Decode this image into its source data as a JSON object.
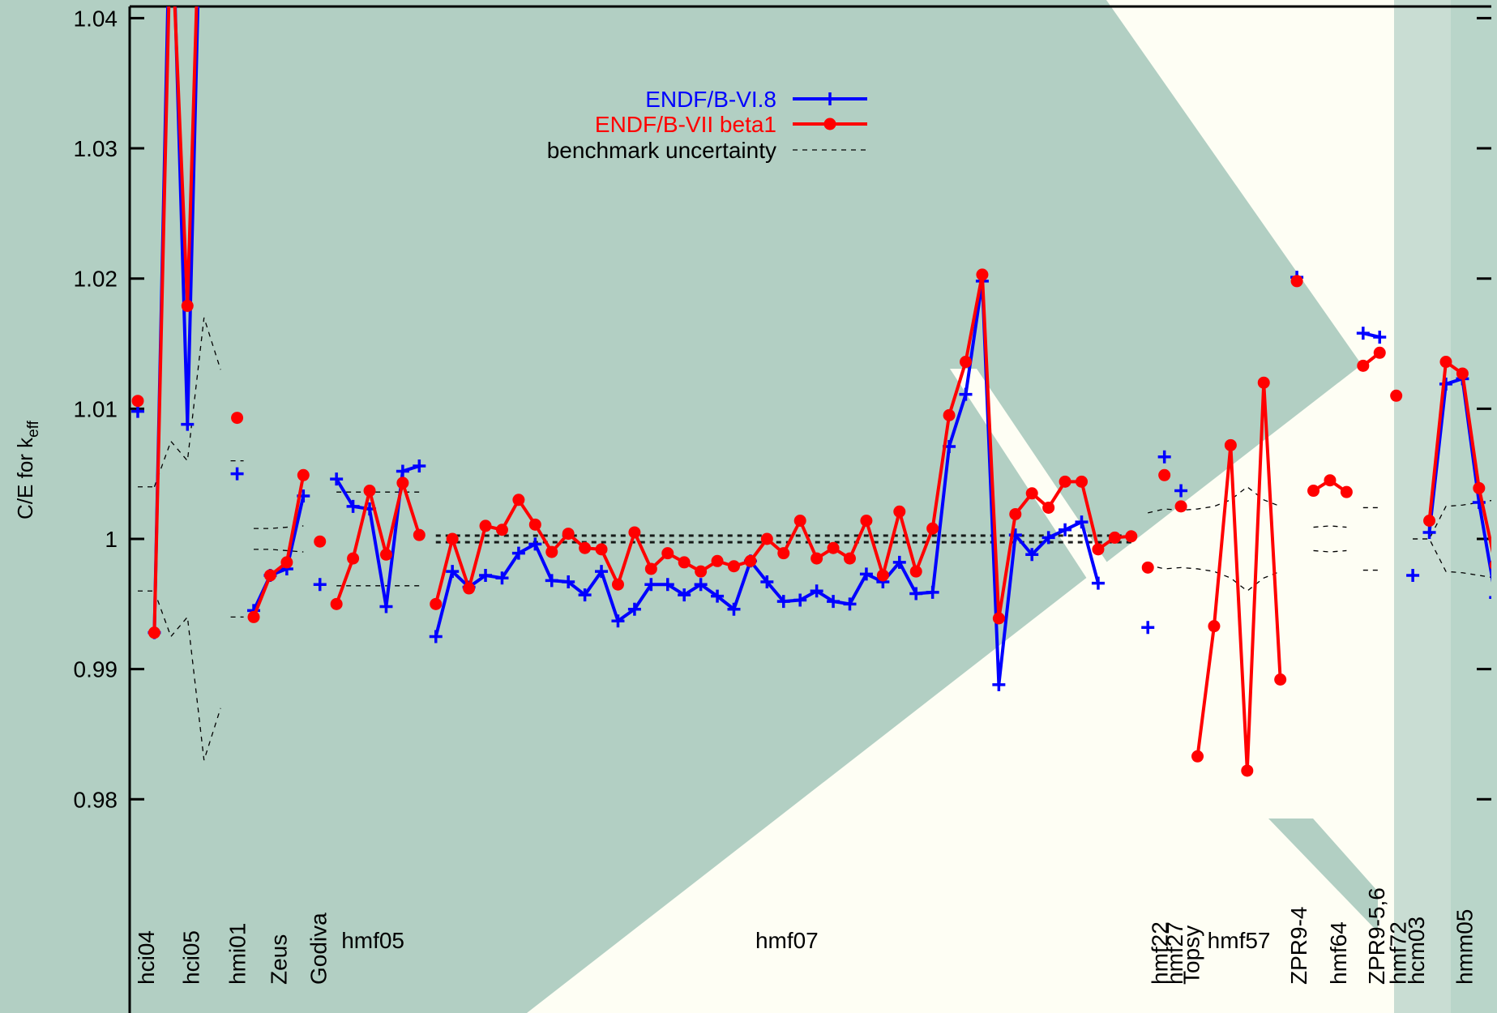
{
  "chart_data": {
    "type": "line",
    "ylabel_main": "C/E for k",
    "ylabel_sub": "eff",
    "ylim": [
      0.98,
      1.04
    ],
    "yticks": [
      "0.98",
      "0.99",
      "1",
      "1.01",
      "1.02",
      "1.03",
      "1.04"
    ],
    "ytick_values": [
      0.98,
      0.99,
      1.0,
      1.01,
      1.02,
      1.03,
      1.04
    ],
    "xlim": [
      0,
      84
    ],
    "grid": false,
    "legend_position": "top-center",
    "legend": [
      {
        "label": "ENDF/B-VI.8",
        "color": "#0000ff",
        "marker": "plus"
      },
      {
        "label": "ENDF/B-VII beta1",
        "color": "#ff0000",
        "marker": "circle"
      },
      {
        "label": "benchmark uncertainty",
        "color": "#000000",
        "marker": "dashed"
      }
    ],
    "group_labels": [
      {
        "text": "hci04",
        "x": 0.5,
        "rotated": true
      },
      {
        "text": "hci05",
        "x": 3.2,
        "rotated": true
      },
      {
        "text": "hmi01",
        "x": 6,
        "rotated": true
      },
      {
        "text": "Zeus",
        "x": 8.5,
        "rotated": true
      },
      {
        "text": "Godiva",
        "x": 10.9,
        "rotated": true
      },
      {
        "text": "hmf05",
        "x": 14.2,
        "rotated": false
      },
      {
        "text": "hmf07",
        "x": 39.2,
        "rotated": false
      },
      {
        "text": "hmf22",
        "x": 61.7,
        "rotated": true
      },
      {
        "text": "hmf27",
        "x": 62.6,
        "rotated": true
      },
      {
        "text": "Topsy",
        "x": 63.6,
        "rotated": true
      },
      {
        "text": "hmf57",
        "x": 66.5,
        "rotated": false
      },
      {
        "text": "ZPR9-4",
        "x": 70.1,
        "rotated": true
      },
      {
        "text": "hmf64",
        "x": 72.5,
        "rotated": true
      },
      {
        "text": "ZPR9-5,6",
        "x": 74.8,
        "rotated": true
      },
      {
        "text": "hmf72",
        "x": 76.1,
        "rotated": true
      },
      {
        "text": "hcm03",
        "x": 77.2,
        "rotated": true
      },
      {
        "text": "hmm05",
        "x": 80.1,
        "rotated": true
      }
    ],
    "series": [
      {
        "name": "ENDF/B-VI.8",
        "color": "#0000ff",
        "marker": "plus",
        "segments": [
          [
            [
              0,
              1.0098
            ]
          ],
          [
            [
              1,
              0.9928
            ],
            [
              2,
              1.052
            ],
            [
              3,
              1.0088
            ],
            [
              4,
              1.06
            ]
          ],
          [
            [
              6,
              1.005
            ]
          ],
          [
            [
              7,
              0.9945
            ],
            [
              8,
              0.9972
            ],
            [
              9,
              0.9977
            ],
            [
              10,
              1.0033
            ]
          ],
          [
            [
              11,
              0.9965
            ]
          ],
          [
            [
              12,
              1.0046
            ],
            [
              13,
              1.0025
            ],
            [
              14,
              1.0023
            ],
            [
              15,
              0.9948
            ],
            [
              16,
              1.0052
            ],
            [
              17,
              1.0056
            ]
          ],
          [
            [
              18,
              0.9925
            ],
            [
              19,
              0.9975
            ],
            [
              20,
              0.9963
            ],
            [
              21,
              0.9972
            ],
            [
              22,
              0.997
            ],
            [
              23,
              0.9989
            ],
            [
              24,
              0.9996
            ],
            [
              25,
              0.9968
            ],
            [
              26,
              0.9967
            ],
            [
              27,
              0.9957
            ],
            [
              28,
              0.9975
            ],
            [
              29,
              0.9937
            ],
            [
              30,
              0.9946
            ],
            [
              31,
              0.9965
            ],
            [
              32,
              0.9965
            ],
            [
              33,
              0.9957
            ],
            [
              34,
              0.9965
            ],
            [
              35,
              0.9956
            ],
            [
              36,
              0.9946
            ],
            [
              37,
              0.9983
            ],
            [
              38,
              0.9967
            ],
            [
              39,
              0.9952
            ],
            [
              40,
              0.9953
            ],
            [
              41,
              0.996
            ],
            [
              42,
              0.9952
            ],
            [
              43,
              0.995
            ],
            [
              44,
              0.9973
            ],
            [
              45,
              0.9967
            ],
            [
              46,
              0.9982
            ],
            [
              47,
              0.9958
            ],
            [
              48,
              0.9959
            ],
            [
              49,
              1.0071
            ],
            [
              50,
              1.0111
            ],
            [
              51,
              1.0198
            ],
            [
              52,
              0.9888
            ],
            [
              53,
              1.0003
            ],
            [
              54,
              0.9988
            ],
            [
              55,
              1.0001
            ],
            [
              56,
              1.0007
            ],
            [
              57,
              1.0013
            ],
            [
              58,
              0.9966
            ]
          ],
          [
            [
              61,
              0.9932
            ]
          ],
          [
            [
              62,
              1.0063
            ]
          ],
          [
            [
              63,
              1.0037
            ]
          ],
          [
            [
              70,
              1.0201
            ]
          ],
          [
            [
              74,
              1.0158
            ],
            [
              75,
              1.0155
            ]
          ],
          [
            [
              77,
              0.9972
            ]
          ],
          [
            [
              78,
              1.0005
            ],
            [
              79,
              1.0119
            ],
            [
              80,
              1.0123
            ],
            [
              81,
              1.0028
            ],
            [
              82,
              0.9955
            ]
          ]
        ]
      },
      {
        "name": "ENDF/B-VII beta1",
        "color": "#ff0000",
        "marker": "circle",
        "segments": [
          [
            [
              0,
              1.0106
            ]
          ],
          [
            [
              1,
              0.9928
            ],
            [
              2,
              1.048
            ],
            [
              3,
              1.0179
            ],
            [
              4,
              1.06
            ]
          ],
          [
            [
              6,
              1.0093
            ]
          ],
          [
            [
              7,
              0.994
            ],
            [
              8,
              0.9972
            ],
            [
              9,
              0.9982
            ],
            [
              10,
              1.0049
            ]
          ],
          [
            [
              11,
              0.9998
            ]
          ],
          [
            [
              12,
              0.995
            ],
            [
              13,
              0.9985
            ],
            [
              14,
              1.0037
            ],
            [
              15,
              0.9988
            ],
            [
              16,
              1.0043
            ],
            [
              17,
              1.0003
            ]
          ],
          [
            [
              18,
              0.995
            ],
            [
              19,
              1.0
            ],
            [
              20,
              0.9962
            ],
            [
              21,
              1.001
            ],
            [
              22,
              1.0007
            ],
            [
              23,
              1.003
            ],
            [
              24,
              1.0011
            ],
            [
              25,
              0.999
            ],
            [
              26,
              1.0004
            ],
            [
              27,
              0.9993
            ],
            [
              28,
              0.9992
            ],
            [
              29,
              0.9965
            ],
            [
              30,
              1.0005
            ],
            [
              31,
              0.9977
            ],
            [
              32,
              0.9989
            ],
            [
              33,
              0.9982
            ],
            [
              34,
              0.9975
            ],
            [
              35,
              0.9983
            ],
            [
              36,
              0.9979
            ],
            [
              37,
              0.9983
            ],
            [
              38,
              1.0
            ],
            [
              39,
              0.9989
            ],
            [
              40,
              1.0014
            ],
            [
              41,
              0.9985
            ],
            [
              42,
              0.9993
            ],
            [
              43,
              0.9985
            ],
            [
              44,
              1.0014
            ],
            [
              45,
              0.9972
            ],
            [
              46,
              1.0021
            ],
            [
              47,
              0.9975
            ],
            [
              48,
              1.0008
            ],
            [
              49,
              1.0095
            ],
            [
              50,
              1.0136
            ],
            [
              51,
              1.0203
            ],
            [
              52,
              0.9939
            ],
            [
              53,
              1.0019
            ],
            [
              54,
              1.0035
            ],
            [
              55,
              1.0024
            ],
            [
              56,
              1.0044
            ],
            [
              57,
              1.0044
            ],
            [
              58,
              0.9992
            ],
            [
              59,
              1.0001
            ],
            [
              60,
              1.0002
            ]
          ],
          [
            [
              61,
              0.9978
            ]
          ],
          [
            [
              62,
              1.0049
            ]
          ],
          [
            [
              63,
              1.0025
            ]
          ],
          [
            [
              64,
              0.9833
            ],
            [
              65,
              0.9933
            ],
            [
              66,
              1.0072
            ],
            [
              67,
              0.9822
            ],
            [
              68,
              1.012
            ],
            [
              69,
              0.9892
            ]
          ],
          [
            [
              70,
              1.0198
            ]
          ],
          [
            [
              71,
              1.0037
            ],
            [
              72,
              1.0045
            ],
            [
              73,
              1.0036
            ]
          ],
          [
            [
              74,
              1.0133
            ],
            [
              75,
              1.0143
            ]
          ],
          [
            [
              76,
              1.011
            ]
          ],
          [
            [
              78,
              1.0014
            ],
            [
              79,
              1.0136
            ],
            [
              80,
              1.0127
            ],
            [
              81,
              1.0039
            ],
            [
              82,
              0.998
            ]
          ]
        ]
      }
    ],
    "uncertainty_bands": [
      {
        "upper": [
          [
            0,
            1.004
          ],
          [
            1,
            1.004
          ]
        ],
        "lower": [
          [
            0,
            0.996
          ],
          [
            1,
            0.996
          ]
        ]
      },
      {
        "upper": [
          [
            1,
            1.004
          ],
          [
            2,
            1.0075
          ],
          [
            3,
            1.006
          ],
          [
            4,
            1.017
          ],
          [
            5,
            1.013
          ]
        ],
        "lower": [
          [
            1,
            0.996
          ],
          [
            2,
            0.9925
          ],
          [
            3,
            0.994
          ],
          [
            4,
            0.983
          ],
          [
            5,
            0.987
          ]
        ]
      },
      {
        "upper": [
          [
            6,
            1.006
          ]
        ],
        "lower": [
          [
            6,
            0.994
          ]
        ]
      },
      {
        "upper": [
          [
            7,
            1.0008
          ],
          [
            8,
            1.0008
          ],
          [
            9,
            1.0009
          ],
          [
            10,
            1.001
          ]
        ],
        "lower": [
          [
            7,
            0.9992
          ],
          [
            8,
            0.9992
          ],
          [
            9,
            0.9991
          ],
          [
            10,
            0.999
          ]
        ]
      },
      {
        "upper": [
          [
            12,
            1.0036
          ],
          [
            17,
            1.0036
          ]
        ],
        "lower": [
          [
            12,
            0.9964
          ],
          [
            17,
            0.9964
          ]
        ]
      },
      {
        "upper": [
          [
            18,
            1.0002
          ],
          [
            60,
            1.0002
          ]
        ],
        "lower": [
          [
            18,
            0.9998
          ],
          [
            60,
            0.9998
          ]
        ]
      },
      {
        "upper": [
          [
            18,
            1.0003
          ],
          [
            60,
            1.0003
          ]
        ],
        "lower": [
          [
            18,
            0.9997
          ],
          [
            60,
            0.9997
          ]
        ]
      },
      {
        "upper": [
          [
            61,
            1.002
          ],
          [
            62,
            1.0023
          ],
          [
            63,
            1.0022
          ],
          [
            64,
            1.0023
          ],
          [
            65,
            1.0025
          ],
          [
            66,
            1.003
          ],
          [
            67,
            1.004
          ],
          [
            68,
            1.003
          ],
          [
            69,
            1.0025
          ]
        ],
        "lower": [
          [
            61,
            0.998
          ],
          [
            62,
            0.9977
          ],
          [
            63,
            0.9978
          ],
          [
            64,
            0.9977
          ],
          [
            65,
            0.9975
          ],
          [
            66,
            0.997
          ],
          [
            67,
            0.996
          ],
          [
            68,
            0.997
          ],
          [
            69,
            0.9975
          ]
        ]
      },
      {
        "upper": [
          [
            71,
            1.0009
          ],
          [
            72,
            1.001
          ],
          [
            73,
            1.0009
          ]
        ],
        "lower": [
          [
            71,
            0.9991
          ],
          [
            72,
            0.999
          ],
          [
            73,
            0.9991
          ]
        ]
      },
      {
        "upper": [
          [
            74,
            1.0024
          ],
          [
            75,
            1.0024
          ]
        ],
        "lower": [
          [
            74,
            0.9976
          ],
          [
            75,
            0.9976
          ]
        ]
      },
      {
        "upper": [
          [
            77,
            1.0
          ],
          [
            78,
            1.0
          ],
          [
            79,
            1.0025
          ],
          [
            80,
            1.0026
          ],
          [
            81,
            1.0028
          ],
          [
            82,
            1.003
          ]
        ],
        "lower": [
          [
            77,
            1.0
          ],
          [
            78,
            1.0
          ],
          [
            79,
            0.9975
          ],
          [
            80,
            0.9974
          ],
          [
            81,
            0.9972
          ],
          [
            82,
            0.997
          ]
        ]
      }
    ]
  }
}
